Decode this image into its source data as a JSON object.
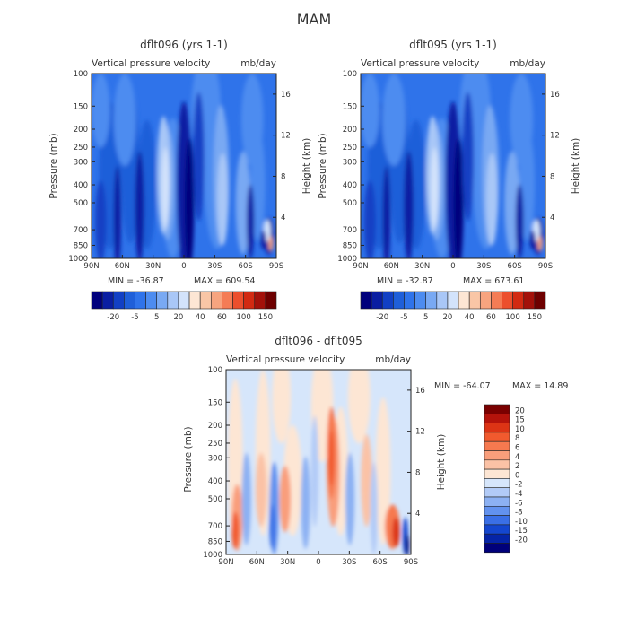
{
  "figure_title": "MAM",
  "chart_data": [
    {
      "type": "heatmap",
      "title": "dflt096 (yrs 1-1)",
      "subtitle": "Vertical pressure velocity",
      "units": "mb/day",
      "xlabel": "",
      "ylabel": "Pressure (mb)",
      "ylabel_right": "Height (km)",
      "x_ticks": [
        "90N",
        "60N",
        "30N",
        "0",
        "30S",
        "60S",
        "90S"
      ],
      "y_ticks": [
        "100",
        "150",
        "200",
        "250",
        "300",
        "400",
        "500",
        "700",
        "850",
        "1000"
      ],
      "y_ticks_right": [
        "16",
        "12",
        "8",
        "4"
      ],
      "min_label": "MIN = -36.87",
      "max_label": "MAX = 609.54",
      "min": -36.87,
      "max": 609.54,
      "colorbar_labels": [
        "-20",
        "-5",
        "5",
        "20",
        "40",
        "60",
        "100",
        "150"
      ],
      "colorbar_colors": [
        "#00007c",
        "#0a1ea2",
        "#1240c4",
        "#1f5fd9",
        "#2f73ea",
        "#4d8cf0",
        "#79a9f3",
        "#a9c7f7",
        "#d3e3fb",
        "#fde6d4",
        "#f9c6a6",
        "#f7a47f",
        "#f47c55",
        "#ec4f2d",
        "#d22a12",
        "#a3110a",
        "#6e0000"
      ],
      "levels": [
        -30,
        -20,
        -10,
        -5,
        0,
        5,
        10,
        20,
        30,
        40,
        50,
        60,
        80,
        100,
        125,
        150
      ]
    },
    {
      "type": "heatmap",
      "title": "dflt095 (yrs 1-1)",
      "subtitle": "Vertical pressure velocity",
      "units": "mb/day",
      "xlabel": "",
      "ylabel": "Pressure (mb)",
      "ylabel_right": "Height (km)",
      "x_ticks": [
        "90N",
        "60N",
        "30N",
        "0",
        "30S",
        "60S",
        "90S"
      ],
      "y_ticks": [
        "100",
        "150",
        "200",
        "250",
        "300",
        "400",
        "500",
        "700",
        "850",
        "1000"
      ],
      "y_ticks_right": [
        "16",
        "12",
        "8",
        "4"
      ],
      "min_label": "MIN = -32.87",
      "max_label": "MAX = 673.61",
      "min": -32.87,
      "max": 673.61,
      "colorbar_labels": [
        "-20",
        "-5",
        "5",
        "20",
        "40",
        "60",
        "100",
        "150"
      ],
      "colorbar_colors": [
        "#00007c",
        "#0a1ea2",
        "#1240c4",
        "#1f5fd9",
        "#2f73ea",
        "#4d8cf0",
        "#79a9f3",
        "#a9c7f7",
        "#d3e3fb",
        "#fde6d4",
        "#f9c6a6",
        "#f7a47f",
        "#f47c55",
        "#ec4f2d",
        "#d22a12",
        "#a3110a",
        "#6e0000"
      ],
      "levels": [
        -30,
        -20,
        -10,
        -5,
        0,
        5,
        10,
        20,
        30,
        40,
        50,
        60,
        80,
        100,
        125,
        150
      ]
    },
    {
      "type": "heatmap",
      "title": "dflt096 - dflt095",
      "subtitle": "Vertical pressure velocity",
      "units": "mb/day",
      "xlabel": "",
      "ylabel": "Pressure (mb)",
      "ylabel_right": "Height (km)",
      "x_ticks": [
        "90N",
        "60N",
        "30N",
        "0",
        "30S",
        "60S",
        "90S"
      ],
      "y_ticks": [
        "100",
        "150",
        "200",
        "250",
        "300",
        "400",
        "500",
        "700",
        "850",
        "1000"
      ],
      "y_ticks_right": [
        "16",
        "12",
        "8",
        "4"
      ],
      "min_label": "MIN = -64.07",
      "max_label": "MAX =  14.89",
      "min": -64.07,
      "max": 14.89,
      "colorbar_labels": [
        "20",
        "15",
        "10",
        "8",
        "6",
        "4",
        "2",
        "0",
        "-2",
        "-4",
        "-6",
        "-8",
        "-10",
        "-15",
        "-20"
      ],
      "colorbar_colors": [
        "#7a0000",
        "#b4130b",
        "#dc3415",
        "#f15a2e",
        "#f6794f",
        "#f99e7b",
        "#fbc2a6",
        "#fde6d4",
        "#d6e6fb",
        "#b2cbf7",
        "#8cb1f3",
        "#6292ef",
        "#3a6fe6",
        "#1446cf",
        "#0524a7",
        "#00007a"
      ],
      "levels": [
        20,
        15,
        10,
        8,
        6,
        4,
        2,
        0,
        -2,
        -4,
        -6,
        -8,
        -10,
        -15,
        -20
      ]
    }
  ]
}
